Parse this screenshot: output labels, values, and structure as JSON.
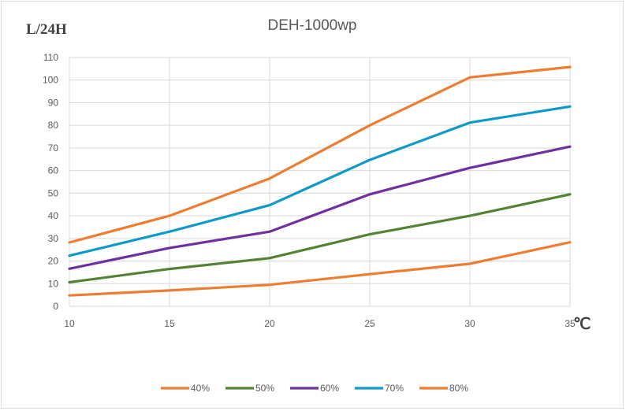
{
  "chart_data": {
    "type": "line",
    "title": "DEH-1000wp",
    "ylabel": "L/24H",
    "xlabel": "℃",
    "x": [
      10,
      15,
      20,
      25,
      30,
      35
    ],
    "x_tick_labels": [
      "10",
      "15",
      "20",
      "25",
      "30",
      "35"
    ],
    "ylim": [
      0,
      110
    ],
    "y_ticks": [
      0,
      10,
      20,
      30,
      40,
      50,
      60,
      70,
      80,
      90,
      100,
      110
    ],
    "grid": "vertical and horizontal",
    "legend_position": "bottom",
    "series": [
      {
        "name": "40%",
        "color": "#ED7D31",
        "values": [
          4.8,
          7.0,
          9.5,
          14.2,
          18.8,
          28.3
        ]
      },
      {
        "name": "50%",
        "color": "#548235",
        "values": [
          10.6,
          16.5,
          21.3,
          31.8,
          40.0,
          49.5
        ]
      },
      {
        "name": "60%",
        "color": "#7030A0",
        "values": [
          16.6,
          25.8,
          33.0,
          49.5,
          61.2,
          70.6
        ]
      },
      {
        "name": "70%",
        "color": "#0E9AC8",
        "values": [
          22.4,
          33.0,
          44.7,
          64.7,
          81.2,
          88.3
        ]
      },
      {
        "name": "80%",
        "color": "#ED7D31",
        "values": [
          28.2,
          40.0,
          56.5,
          80.0,
          101.2,
          105.8
        ]
      }
    ]
  }
}
